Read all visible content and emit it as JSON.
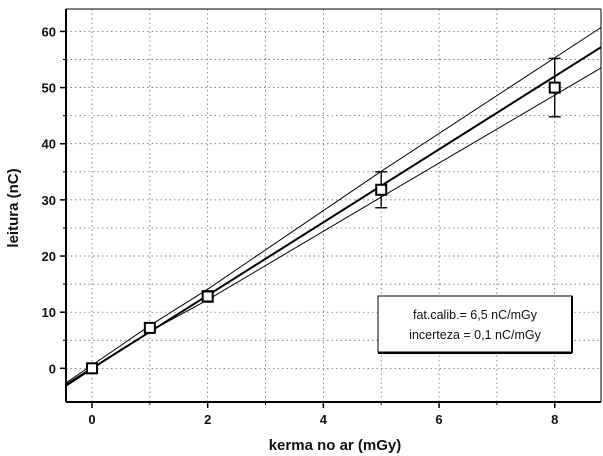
{
  "chart_data": {
    "type": "scatter",
    "xlabel": "kerma no ar (mGy)",
    "ylabel": "leitura (nC)",
    "xlim": [
      -0.45,
      8.8
    ],
    "ylim": [
      -6,
      64
    ],
    "x_ticks": [
      0,
      2,
      4,
      6,
      8
    ],
    "y_ticks": [
      0,
      10,
      20,
      30,
      40,
      50,
      60
    ],
    "grid": true,
    "series": [
      {
        "marker": "open-square",
        "x": [
          0,
          1,
          2,
          5,
          8
        ],
        "y": [
          0,
          7.2,
          12.8,
          31.8,
          50.0
        ],
        "yerr": [
          0.4,
          0.8,
          1.0,
          3.2,
          5.2
        ]
      }
    ],
    "fit": {
      "slope": 6.5,
      "intercept": 0,
      "lower_band": [
        [
          -0.45,
          -3.2
        ],
        [
          1,
          6.6
        ],
        [
          2,
          12.2
        ],
        [
          5,
          30.5
        ],
        [
          8.8,
          53.5
        ]
      ],
      "upper_band": [
        [
          -0.45,
          -2.6
        ],
        [
          1,
          7.6
        ],
        [
          2,
          14.1
        ],
        [
          5,
          35.1
        ],
        [
          8.8,
          60.7
        ]
      ]
    },
    "annotation": {
      "line1": "fat.calib.= 6,5 nC/mGy",
      "line2": "incerteza = 0,1 nC/mGy"
    }
  }
}
